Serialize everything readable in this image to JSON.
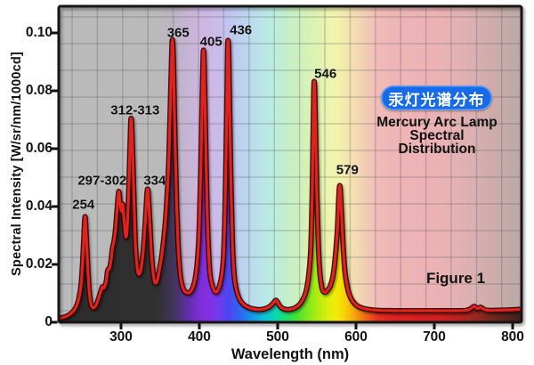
{
  "figure": {
    "badge": {
      "text": "汞灯光谱分布",
      "bg_color": "#176ae8",
      "text_color": "#ffffff"
    },
    "title_lines": [
      "Mercury Arc Lamp",
      "Spectral",
      "Distribution"
    ],
    "figure_label": "Figure 1"
  },
  "chart_data": {
    "type": "area",
    "title": "Mercury Arc Lamp Spectral Distribution",
    "xlabel": "Wavelength (nm)",
    "ylabel": "Spectral Intensity [W/sr/nm/1000cd]",
    "xlim": [
      218,
      812
    ],
    "ylim": [
      0,
      0.1092
    ],
    "x_ticks": [
      300,
      400,
      500,
      600,
      700,
      800
    ],
    "y_ticks": [
      0,
      0.02,
      0.04,
      0.06,
      0.08,
      0.1
    ],
    "y_tick_labels": [
      "0",
      "0.02",
      "0.04",
      "0.06",
      "0.08",
      "0.10"
    ],
    "grid": true,
    "line_color": "#e2211c",
    "line_shadow_color": "#2e0604",
    "frame_color": "#161616",
    "peaks": [
      {
        "label": "254",
        "wl": 254,
        "intensity": 0.036,
        "label_wl": 252,
        "label_v": 0.0405
      },
      {
        "label": "297-302",
        "wl": 297,
        "intensity": 0.045,
        "label_wl": 276,
        "label_v": 0.049
      },
      {
        "label": "312-313",
        "wl": 313,
        "intensity": 0.0705,
        "label_wl": 318,
        "label_v": 0.0732
      },
      {
        "label": "334",
        "wl": 334,
        "intensity": 0.046,
        "label_wl": 343,
        "label_v": 0.049
      },
      {
        "label": "365",
        "wl": 365,
        "intensity": 0.0962,
        "label_wl": 373,
        "label_v": 0.1
      },
      {
        "label": "405",
        "wl": 405,
        "intensity": 0.0932,
        "label_wl": 415,
        "label_v": 0.0969
      },
      {
        "label": "436",
        "wl": 436,
        "intensity": 0.0962,
        "label_wl": 453,
        "label_v": 0.1009
      },
      {
        "label": "546",
        "wl": 546,
        "intensity": 0.0818,
        "label_wl": 561,
        "label_v": 0.0858
      },
      {
        "label": "579",
        "wl": 579,
        "intensity": 0.047,
        "label_wl": 589,
        "label_v": 0.0526
      }
    ],
    "curve": [
      [
        218,
        0.0012
      ],
      [
        228,
        0.0018
      ],
      [
        236,
        0.003
      ],
      [
        242,
        0.005
      ],
      [
        246,
        0.008
      ],
      [
        249,
        0.013
      ],
      [
        251,
        0.021
      ],
      [
        253,
        0.032
      ],
      [
        254,
        0.0365
      ],
      [
        255,
        0.033
      ],
      [
        257,
        0.022
      ],
      [
        259,
        0.012
      ],
      [
        261,
        0.007
      ],
      [
        264,
        0.005
      ],
      [
        268,
        0.0058
      ],
      [
        271,
        0.008
      ],
      [
        274,
        0.0105
      ],
      [
        276,
        0.0122
      ],
      [
        278,
        0.0118
      ],
      [
        281,
        0.014
      ],
      [
        283,
        0.018
      ],
      [
        285,
        0.0185
      ],
      [
        287,
        0.021
      ],
      [
        289,
        0.0255
      ],
      [
        291,
        0.028
      ],
      [
        293,
        0.032
      ],
      [
        295,
        0.039
      ],
      [
        297,
        0.0452
      ],
      [
        299,
        0.0405
      ],
      [
        301,
        0.0382
      ],
      [
        302,
        0.0408
      ],
      [
        304,
        0.035
      ],
      [
        306,
        0.0295
      ],
      [
        308,
        0.033
      ],
      [
        310,
        0.047
      ],
      [
        312,
        0.066
      ],
      [
        313,
        0.0705
      ],
      [
        314,
        0.0655
      ],
      [
        316,
        0.047
      ],
      [
        318,
        0.029
      ],
      [
        320,
        0.0205
      ],
      [
        322,
        0.0168
      ],
      [
        325,
        0.0178
      ],
      [
        328,
        0.0235
      ],
      [
        331,
        0.035
      ],
      [
        333,
        0.044
      ],
      [
        334,
        0.046
      ],
      [
        335,
        0.0435
      ],
      [
        337,
        0.033
      ],
      [
        339,
        0.023
      ],
      [
        341,
        0.017
      ],
      [
        343,
        0.0138
      ],
      [
        346,
        0.0142
      ],
      [
        349,
        0.018
      ],
      [
        352,
        0.023
      ],
      [
        355,
        0.03
      ],
      [
        358,
        0.04
      ],
      [
        361,
        0.056
      ],
      [
        363,
        0.075
      ],
      [
        365,
        0.0955
      ],
      [
        366,
        0.0962
      ],
      [
        367,
        0.088
      ],
      [
        369,
        0.062
      ],
      [
        371,
        0.04
      ],
      [
        373,
        0.026
      ],
      [
        375,
        0.018
      ],
      [
        377,
        0.0138
      ],
      [
        380,
        0.0112
      ],
      [
        384,
        0.0102
      ],
      [
        388,
        0.0104
      ],
      [
        392,
        0.0122
      ],
      [
        395,
        0.0155
      ],
      [
        398,
        0.023
      ],
      [
        400,
        0.034
      ],
      [
        402,
        0.055
      ],
      [
        404,
        0.082
      ],
      [
        405,
        0.0932
      ],
      [
        406,
        0.09
      ],
      [
        408,
        0.064
      ],
      [
        410,
        0.038
      ],
      [
        412,
        0.023
      ],
      [
        414,
        0.0158
      ],
      [
        417,
        0.0122
      ],
      [
        420,
        0.0105
      ],
      [
        423,
        0.0108
      ],
      [
        426,
        0.0128
      ],
      [
        429,
        0.017
      ],
      [
        431,
        0.024
      ],
      [
        433,
        0.042
      ],
      [
        435,
        0.073
      ],
      [
        436,
        0.0945
      ],
      [
        437,
        0.0962
      ],
      [
        438,
        0.085
      ],
      [
        440,
        0.052
      ],
      [
        442,
        0.029
      ],
      [
        444,
        0.0175
      ],
      [
        446,
        0.0128
      ],
      [
        449,
        0.0095
      ],
      [
        453,
        0.0072
      ],
      [
        458,
        0.0058
      ],
      [
        464,
        0.005
      ],
      [
        471,
        0.0045
      ],
      [
        478,
        0.0044
      ],
      [
        484,
        0.0047
      ],
      [
        489,
        0.0053
      ],
      [
        493,
        0.0062
      ],
      [
        496,
        0.0072
      ],
      [
        498,
        0.0076
      ],
      [
        500,
        0.0068
      ],
      [
        503,
        0.0055
      ],
      [
        507,
        0.0047
      ],
      [
        512,
        0.0044
      ],
      [
        518,
        0.0046
      ],
      [
        523,
        0.0051
      ],
      [
        528,
        0.0062
      ],
      [
        532,
        0.0078
      ],
      [
        536,
        0.0105
      ],
      [
        539,
        0.0148
      ],
      [
        542,
        0.024
      ],
      [
        544,
        0.043
      ],
      [
        546,
        0.079
      ],
      [
        547,
        0.0818
      ],
      [
        548,
        0.072
      ],
      [
        550,
        0.044
      ],
      [
        552,
        0.026
      ],
      [
        554,
        0.0168
      ],
      [
        556,
        0.0125
      ],
      [
        558,
        0.0108
      ],
      [
        561,
        0.0104
      ],
      [
        564,
        0.0112
      ],
      [
        567,
        0.0125
      ],
      [
        570,
        0.0152
      ],
      [
        573,
        0.021
      ],
      [
        576,
        0.031
      ],
      [
        578,
        0.043
      ],
      [
        579,
        0.047
      ],
      [
        580,
        0.0455
      ],
      [
        582,
        0.035
      ],
      [
        584,
        0.0245
      ],
      [
        586,
        0.0172
      ],
      [
        589,
        0.0122
      ],
      [
        592,
        0.0092
      ],
      [
        596,
        0.0072
      ],
      [
        601,
        0.0058
      ],
      [
        608,
        0.0049
      ],
      [
        617,
        0.0044
      ],
      [
        630,
        0.0041
      ],
      [
        648,
        0.004
      ],
      [
        670,
        0.004
      ],
      [
        695,
        0.004
      ],
      [
        720,
        0.004
      ],
      [
        740,
        0.0041
      ],
      [
        747,
        0.0048
      ],
      [
        751,
        0.0055
      ],
      [
        755,
        0.0047
      ],
      [
        759,
        0.0052
      ],
      [
        764,
        0.0044
      ],
      [
        772,
        0.0041
      ],
      [
        785,
        0.0042
      ],
      [
        800,
        0.0043
      ],
      [
        812,
        0.0045
      ]
    ],
    "spectrum_stops": [
      {
        "wl": 220,
        "fill": "#2c2c2c",
        "bg": "#bababa"
      },
      {
        "wl": 345,
        "fill": "#303030",
        "bg": "#bababa"
      },
      {
        "wl": 368,
        "fill": "#42345c",
        "bg": "#bdb4c4"
      },
      {
        "wl": 385,
        "fill": "#5f2ea6",
        "bg": "#c6b4d4"
      },
      {
        "wl": 400,
        "fill": "#7c2fd6",
        "bg": "#cdb6e0"
      },
      {
        "wl": 412,
        "fill": "#842fe4",
        "bg": "#cfb7e4"
      },
      {
        "wl": 425,
        "fill": "#6f3bee",
        "bg": "#cabce9"
      },
      {
        "wl": 438,
        "fill": "#4a47f2",
        "bg": "#c0c4ef"
      },
      {
        "wl": 452,
        "fill": "#2f66f0",
        "bg": "#bdd0ee"
      },
      {
        "wl": 468,
        "fill": "#1895e8",
        "bg": "#badcec"
      },
      {
        "wl": 482,
        "fill": "#0ec0da",
        "bg": "#b9e6e8"
      },
      {
        "wl": 496,
        "fill": "#0cd4b4",
        "bg": "#bcecdf"
      },
      {
        "wl": 510,
        "fill": "#1cdf72",
        "bg": "#c3eecc"
      },
      {
        "wl": 524,
        "fill": "#45e132",
        "bg": "#ccf0bf"
      },
      {
        "wl": 538,
        "fill": "#7fe81c",
        "bg": "#d6f2b6"
      },
      {
        "wl": 552,
        "fill": "#b3ec12",
        "bg": "#e0f3b1"
      },
      {
        "wl": 566,
        "fill": "#e2ee0a",
        "bg": "#edf4ad"
      },
      {
        "wl": 578,
        "fill": "#f4e606",
        "bg": "#f3f1ac"
      },
      {
        "wl": 590,
        "fill": "#f6c30a",
        "bg": "#f4e5af"
      },
      {
        "wl": 603,
        "fill": "#f49210",
        "bg": "#f3d7b2"
      },
      {
        "wl": 615,
        "fill": "#ef5b17",
        "bg": "#f2c9b4"
      },
      {
        "wl": 628,
        "fill": "#e6311f",
        "bg": "#f0bcb6"
      },
      {
        "wl": 645,
        "fill": "#e02222",
        "bg": "#efb6b7"
      },
      {
        "wl": 680,
        "fill": "#da1e1e",
        "bg": "#eeb3b5"
      },
      {
        "wl": 715,
        "fill": "#cb2020",
        "bg": "#e9b2b4"
      },
      {
        "wl": 745,
        "fill": "#a62522",
        "bg": "#ddb0b1"
      },
      {
        "wl": 775,
        "fill": "#6f2820",
        "bg": "#cdacab"
      },
      {
        "wl": 800,
        "fill": "#4a231d",
        "bg": "#c0aaa8"
      },
      {
        "wl": 812,
        "fill": "#3c1f1b",
        "bg": "#baa8a6"
      }
    ]
  }
}
